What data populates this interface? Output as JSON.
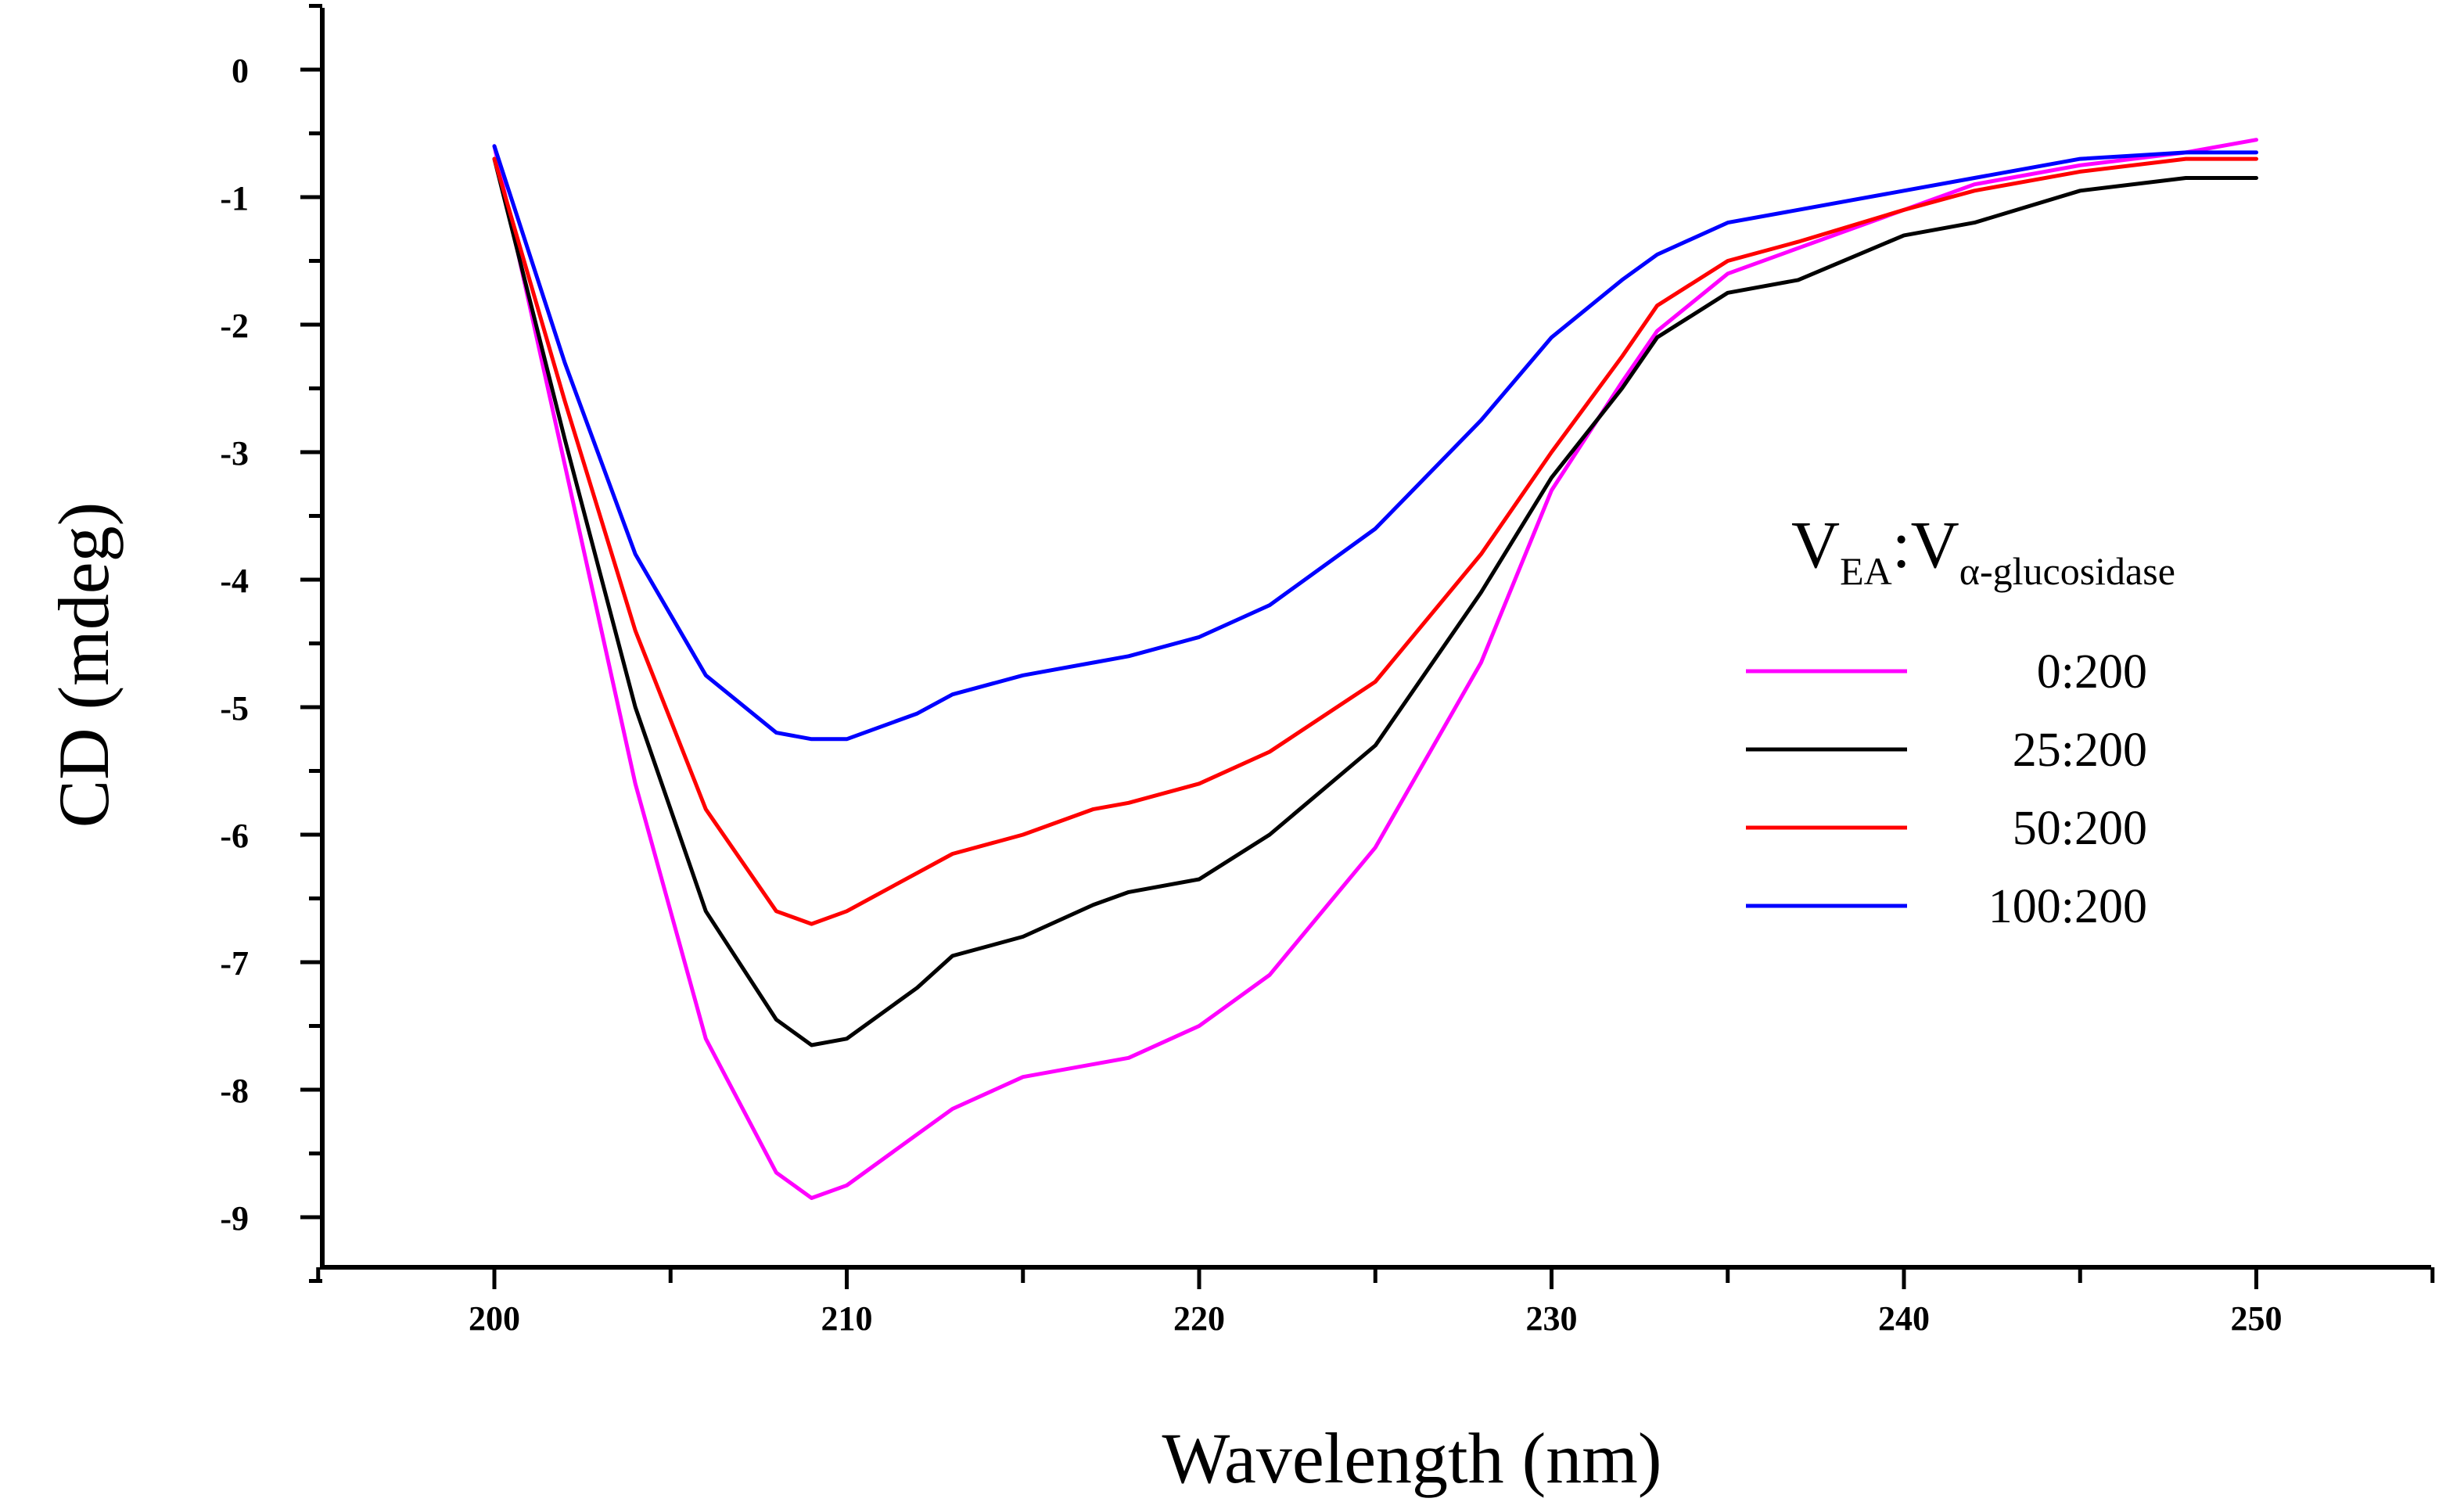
{
  "chart_data": {
    "type": "line",
    "title": "",
    "xlabel": "Wavelength (nm)",
    "ylabel": "CD (mdeg)",
    "xlim": [
      195,
      255
    ],
    "ylim": [
      -9.5,
      0.5
    ],
    "xticks": [
      200,
      210,
      220,
      230,
      240,
      250
    ],
    "yticks": [
      0,
      -1,
      -2,
      -3,
      -4,
      -5,
      -6,
      -7,
      -8,
      -9
    ],
    "grid": false,
    "legend": {
      "title_main": "V",
      "title_sub1": "EA",
      "title_sep": ":V",
      "title_sub2": "α-glucosidase",
      "placement": "right"
    },
    "x": [
      200,
      202,
      204,
      206,
      208,
      209,
      210,
      212,
      213,
      215,
      217,
      218,
      220,
      222,
      225,
      228,
      230,
      232,
      233,
      235,
      237,
      240,
      242,
      245,
      248,
      250
    ],
    "series": [
      {
        "name": "0:200",
        "color": "#ff00ff",
        "values": [
          -0.6,
          -3.1,
          -5.6,
          -7.6,
          -8.65,
          -8.85,
          -8.75,
          -8.35,
          -8.15,
          -7.9,
          -7.8,
          -7.75,
          -7.5,
          -7.1,
          -6.1,
          -4.65,
          -3.3,
          -2.45,
          -2.05,
          -1.6,
          -1.4,
          -1.1,
          -0.9,
          -0.75,
          -0.65,
          -0.55
        ]
      },
      {
        "name": "25:200",
        "color": "#000000",
        "values": [
          -0.7,
          -2.9,
          -5.0,
          -6.6,
          -7.45,
          -7.65,
          -7.6,
          -7.2,
          -6.95,
          -6.8,
          -6.55,
          -6.45,
          -6.35,
          -6.0,
          -5.3,
          -4.1,
          -3.2,
          -2.5,
          -2.1,
          -1.75,
          -1.65,
          -1.3,
          -1.2,
          -0.95,
          -0.85,
          -0.85
        ]
      },
      {
        "name": "50:200",
        "color": "#ff0000",
        "values": [
          -0.7,
          -2.6,
          -4.4,
          -5.8,
          -6.6,
          -6.7,
          -6.6,
          -6.3,
          -6.15,
          -6.0,
          -5.8,
          -5.75,
          -5.6,
          -5.35,
          -4.8,
          -3.8,
          -3.0,
          -2.25,
          -1.85,
          -1.5,
          -1.35,
          -1.1,
          -0.95,
          -0.8,
          -0.7,
          -0.7
        ]
      },
      {
        "name": "100:200",
        "color": "#0000ff",
        "values": [
          -0.6,
          -2.3,
          -3.8,
          -4.75,
          -5.2,
          -5.25,
          -5.25,
          -5.05,
          -4.9,
          -4.75,
          -4.65,
          -4.6,
          -4.45,
          -4.2,
          -3.6,
          -2.75,
          -2.1,
          -1.65,
          -1.45,
          -1.2,
          -1.1,
          -0.95,
          -0.85,
          -0.7,
          -0.65,
          -0.65
        ]
      }
    ]
  }
}
